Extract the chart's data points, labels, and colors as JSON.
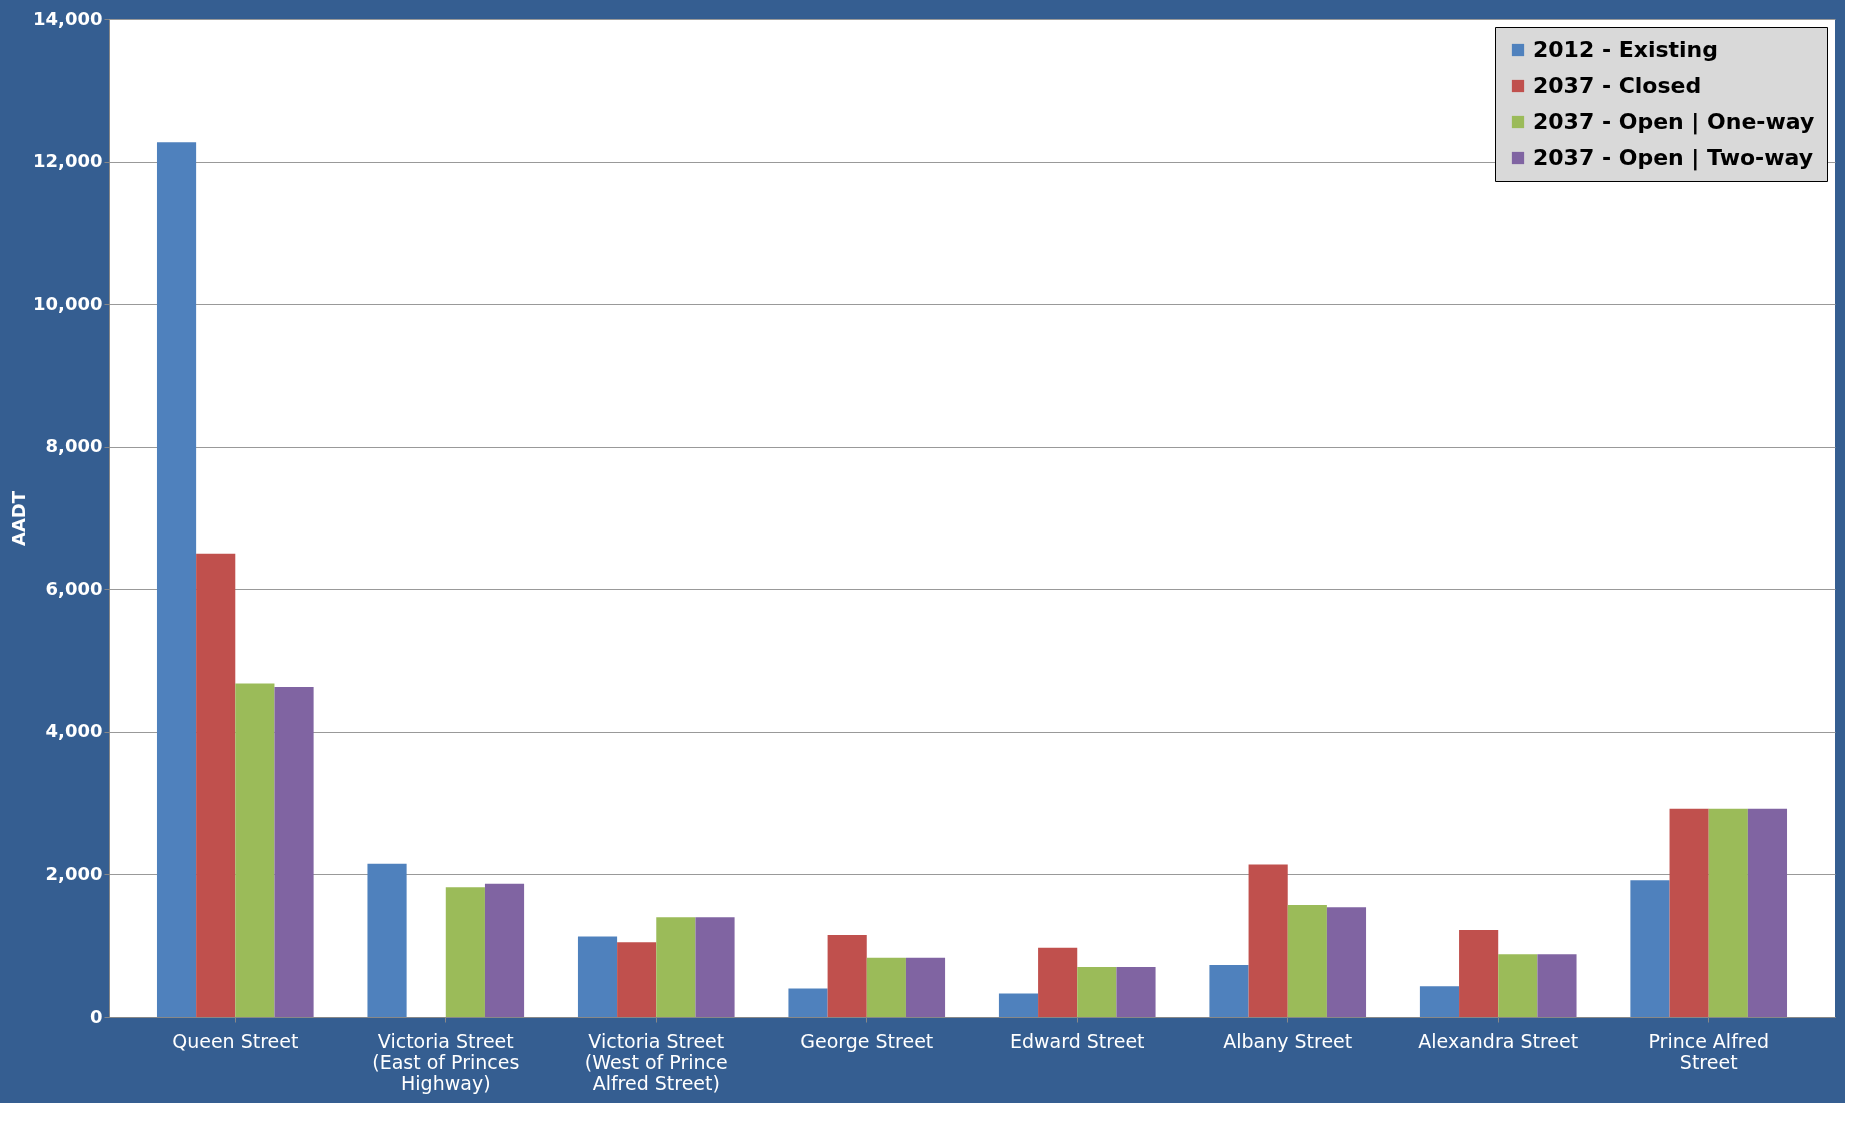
{
  "chart_data": {
    "type": "bar",
    "ylabel": "AADT",
    "categories": [
      "Queen Street",
      "Victoria Street (East of Princes Highway)",
      "Victoria Street (West of Prince Alfred Street)",
      "George Street",
      "Edward Street",
      "Albany Street",
      "Alexandra Street",
      "Prince Alfred Street"
    ],
    "series": [
      {
        "name": "2012 - Existing",
        "color": "#4f81bd",
        "values": [
          12270,
          2150,
          1130,
          400,
          330,
          730,
          430,
          1920
        ]
      },
      {
        "name": "2037 - Closed",
        "color": "#c0504d",
        "values": [
          6500,
          null,
          1050,
          1150,
          970,
          2140,
          1220,
          2920
        ]
      },
      {
        "name": "2037 - Open | One-way",
        "color": "#9bbb59",
        "values": [
          4680,
          1820,
          1400,
          830,
          700,
          1570,
          880,
          2920
        ]
      },
      {
        "name": "2037 - Open | Two-way",
        "color": "#8064a2",
        "values": [
          4630,
          1870,
          1400,
          830,
          700,
          1540,
          880,
          2920
        ]
      }
    ],
    "ylim": [
      0,
      14000
    ],
    "yticks": [
      {
        "value": 0,
        "label": "0"
      },
      {
        "value": 2000,
        "label": "2,000"
      },
      {
        "value": 4000,
        "label": "4,000"
      },
      {
        "value": 6000,
        "label": "6,000"
      },
      {
        "value": 8000,
        "label": "8,000"
      },
      {
        "value": 10000,
        "label": "10,000"
      },
      {
        "value": 12000,
        "label": "12,000"
      },
      {
        "value": 14000,
        "label": "14,000"
      }
    ],
    "grid": "y",
    "legend": "top right"
  }
}
